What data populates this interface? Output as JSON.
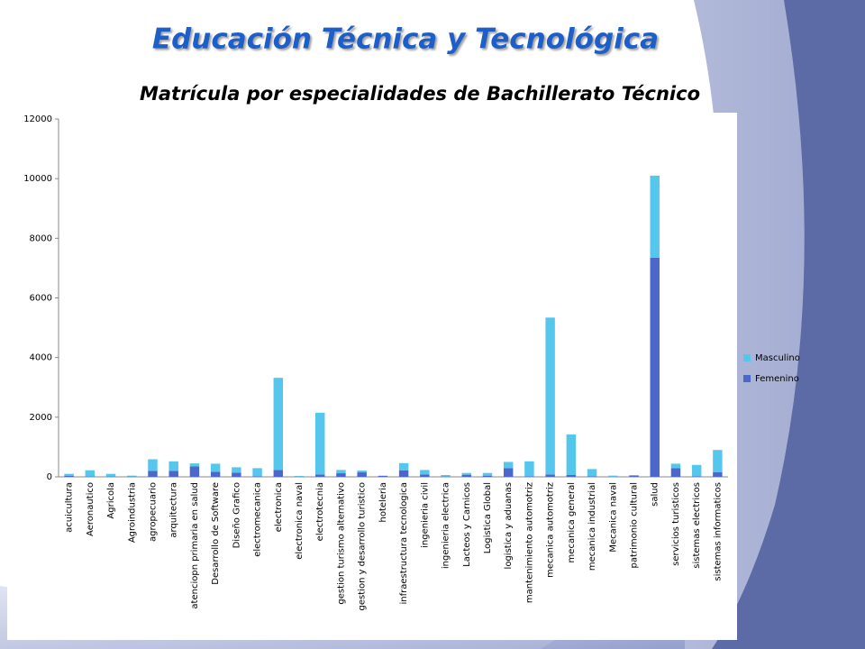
{
  "header": {
    "title": "Educación Técnica y Tecnológica"
  },
  "chart_data": {
    "type": "bar",
    "stacked": true,
    "title": "Matrícula por especialidades de Bachillerato Técnico",
    "categories": [
      "acuicultura",
      "Aeronautico",
      "Agricola",
      "Agroindustria",
      "agropecuario",
      "arquitectura",
      "atenciopn primaria en salud",
      "Desarrollo de Software",
      "Diseño Grafico",
      "electromecanica",
      "electronica",
      "electronica naval",
      "electrotecnia",
      "gestion turismo alternativo",
      "gestion y desarrollo turistico",
      "hoteleria",
      "infraestructura tecnologica",
      "ingenieria civil",
      "ingenieria electrica",
      "Lacteos y Carnicos",
      "Logistica Global",
      "logistica y aduanas",
      "mantenimiento automotriz",
      "mecanica automotriz",
      "mecanica general",
      "mecanica industrial",
      "Mecanica naval",
      "patrimonio cultural",
      "salud",
      "servicios turisticos",
      "sistemas electricos",
      "sistemas informaticos"
    ],
    "series": [
      {
        "name": "Femenino",
        "color": "#4a67c9",
        "values": [
          30,
          10,
          10,
          10,
          200,
          200,
          350,
          170,
          140,
          20,
          230,
          5,
          80,
          120,
          150,
          30,
          220,
          80,
          10,
          70,
          40,
          290,
          20,
          80,
          60,
          20,
          5,
          40,
          7350,
          290,
          20,
          160
        ]
      },
      {
        "name": "Masculino",
        "color": "#55c6ec",
        "values": [
          70,
          210,
          90,
          30,
          390,
          320,
          100,
          270,
          180,
          270,
          3090,
          25,
          2070,
          110,
          60,
          10,
          240,
          150,
          50,
          60,
          90,
          210,
          500,
          5260,
          1360,
          240,
          35,
          20,
          2750,
          150,
          380,
          740
        ]
      }
    ],
    "ylim": [
      0,
      12000
    ],
    "yticks": [
      0,
      2000,
      4000,
      6000,
      8000,
      10000,
      12000
    ],
    "grid": false,
    "legend": "right"
  }
}
